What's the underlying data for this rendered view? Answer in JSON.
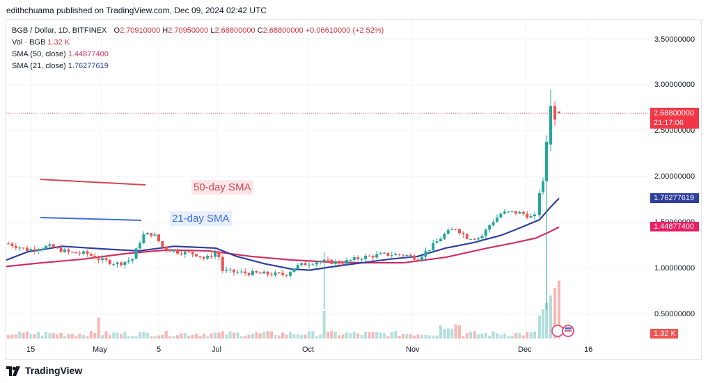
{
  "header": {
    "published_text": "edithchuama published on TradingView.com, Dec 09, 2024 02:42 UTC"
  },
  "legend": {
    "symbol": "BGB / Dollar, 1D, BITFINEX",
    "o_label": "O",
    "o_value": "2.70910000",
    "h_label": "H",
    "h_value": "2.70950000",
    "l_label": "L",
    "l_value": "2.68800000",
    "c_label": "C",
    "c_value": "2.68800000",
    "change": "+0.06610000 (+2.52%)",
    "vol_label": "Vol · BGB",
    "vol_value": "1.32 K",
    "sma50_label": "SMA (50, close)",
    "sma50_value": "1.44877400",
    "sma21_label": "SMA (21, close)",
    "sma21_value": "1.76277619"
  },
  "price_axis": {
    "ticks": [
      "3.50000000",
      "3.00000000",
      "2.50000000",
      "2.00000000",
      "1.50000000",
      "1.00000000",
      "0.50000000"
    ],
    "last_price_badge": "2.68800000",
    "countdown": "21:17:06",
    "sma21_badge": "1.76277619",
    "sma50_badge": "1.44877400",
    "volume_badge": "1.32 K"
  },
  "time_axis": {
    "ticks": [
      "15",
      "May",
      "5",
      "Jul",
      "Oct",
      "Nov",
      "Dec",
      "16"
    ]
  },
  "annotations": {
    "sma50_text": "50-day SMA",
    "sma21_text": "21-day SMA"
  },
  "footer": {
    "brand": "TradingView"
  },
  "colors": {
    "up": "#26a69a",
    "down": "#ef5350",
    "sma21": "#2e3d9e",
    "sma50": "#cc2f64",
    "badge_red": "#f23645",
    "badge_blue": "#2962ff",
    "badge_pink": "#e91e63"
  },
  "chart_data": {
    "type": "candlestick",
    "symbol": "BGB / Dollar",
    "timeframe": "1D",
    "exchange": "BITFINEX",
    "ylim": [
      0.25,
      3.7
    ],
    "grid": true,
    "series": [
      {
        "name": "SMA (50, close)",
        "last": 1.448774
      },
      {
        "name": "SMA (21, close)",
        "last": 1.76277619
      }
    ],
    "last_bar": {
      "open": 2.7091,
      "high": 2.7095,
      "low": 2.688,
      "close": 2.688,
      "change": 0.0661,
      "change_pct": 2.52
    }
  }
}
